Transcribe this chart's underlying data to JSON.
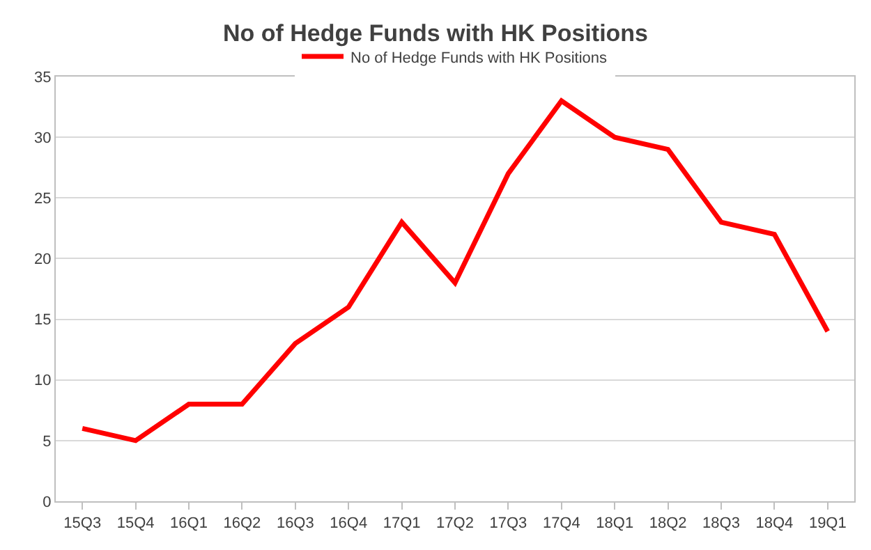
{
  "chart_data": {
    "type": "line",
    "title": "No of Hedge Funds with HK Positions",
    "categories": [
      "15Q3",
      "15Q4",
      "16Q1",
      "16Q2",
      "16Q3",
      "16Q4",
      "17Q1",
      "17Q2",
      "17Q3",
      "17Q4",
      "18Q1",
      "18Q2",
      "18Q3",
      "18Q4",
      "19Q1"
    ],
    "series": [
      {
        "name": "No of Hedge Funds with HK Positions",
        "color": "#ff0000",
        "values": [
          6,
          5,
          8,
          8,
          13,
          16,
          23,
          18,
          27,
          33,
          30,
          29,
          23,
          22,
          14
        ]
      }
    ],
    "ylim": [
      0,
      35
    ],
    "yticks": [
      0,
      5,
      10,
      15,
      20,
      25,
      30,
      35
    ],
    "grid": "y",
    "legend": "top",
    "marker": "none",
    "line_style": "solid"
  }
}
